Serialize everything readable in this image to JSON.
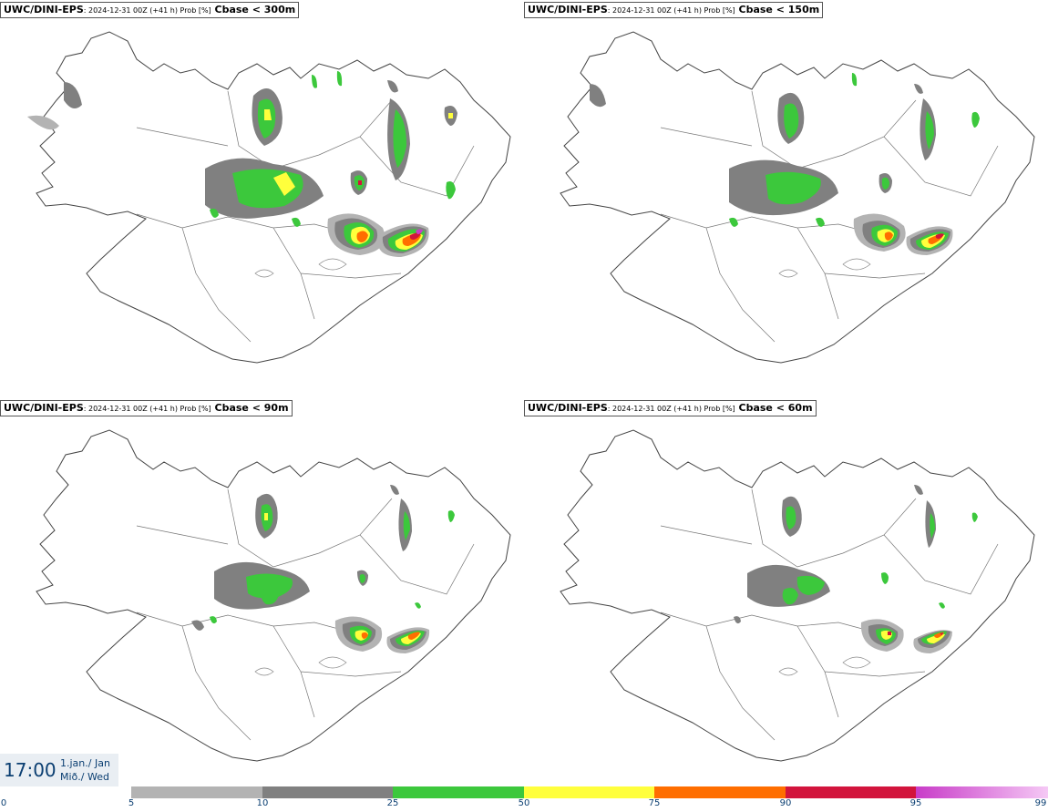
{
  "panels": [
    {
      "source": "UWC/DINI-EPS",
      "meta": ": 2024-12-31 00Z (+41 h) Prob [%]",
      "condition": " Cbase < 300m"
    },
    {
      "source": "UWC/DINI-EPS",
      "meta": ": 2024-12-31 00Z (+41 h) Prob [%]",
      "condition": " Cbase < 150m"
    },
    {
      "source": "UWC/DINI-EPS",
      "meta": ": 2024-12-31 00Z (+41 h) Prob [%]",
      "condition": " Cbase < 90m"
    },
    {
      "source": "UWC/DINI-EPS",
      "meta": ": 2024-12-31 00Z (+41 h) Prob [%]",
      "condition": " Cbase < 60m"
    }
  ],
  "valid_time": {
    "time": "17:00",
    "date_line1": "1.jan./ Jan",
    "date_line2": "Mið./ Wed"
  },
  "legend": {
    "ticks": [
      "0",
      "5",
      "10",
      "25",
      "50",
      "75",
      "90",
      "95",
      "99"
    ],
    "colors": {
      "p5_10": "#b3b3b3",
      "p10_25": "#808080",
      "p25_50": "#3cc83c",
      "p50_75": "#ffff3c",
      "p75_90": "#ff6e00",
      "p90_95": "#d2143c",
      "p95_99_start": "#c83cc8",
      "p95_99_end": "#f5c8f5"
    }
  }
}
